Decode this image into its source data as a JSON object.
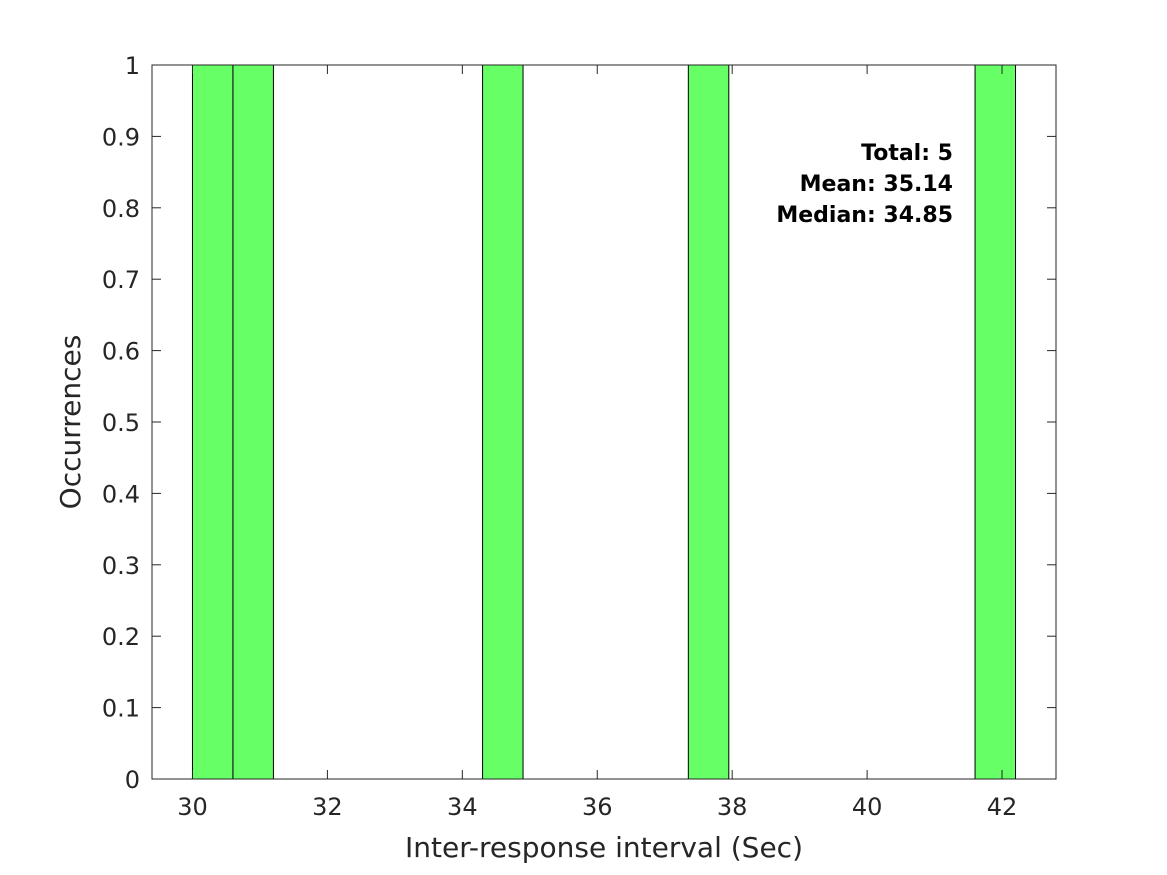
{
  "chart_data": {
    "type": "bar",
    "xlabel": "Inter-response interval (Sec)",
    "ylabel": "Occurrences",
    "xlim": [
      29.4,
      42.8
    ],
    "ylim": [
      0,
      1
    ],
    "xticks": [
      30,
      32,
      34,
      36,
      38,
      40,
      42
    ],
    "yticks": [
      0,
      0.1,
      0.2,
      0.3,
      0.4,
      0.5,
      0.6,
      0.7,
      0.8,
      0.9,
      1
    ],
    "bar_color": "#66ff66",
    "bins": [
      {
        "x0": 30.0,
        "x1": 30.6,
        "value": 1
      },
      {
        "x0": 30.6,
        "x1": 31.2,
        "value": 1
      },
      {
        "x0": 34.3,
        "x1": 34.9,
        "value": 1
      },
      {
        "x0": 37.35,
        "x1": 37.95,
        "value": 1
      },
      {
        "x0": 41.6,
        "x1": 42.2,
        "value": 1
      }
    ],
    "annotations": [
      "Total: 5",
      "Mean: 35.14",
      "Median: 34.85"
    ]
  }
}
